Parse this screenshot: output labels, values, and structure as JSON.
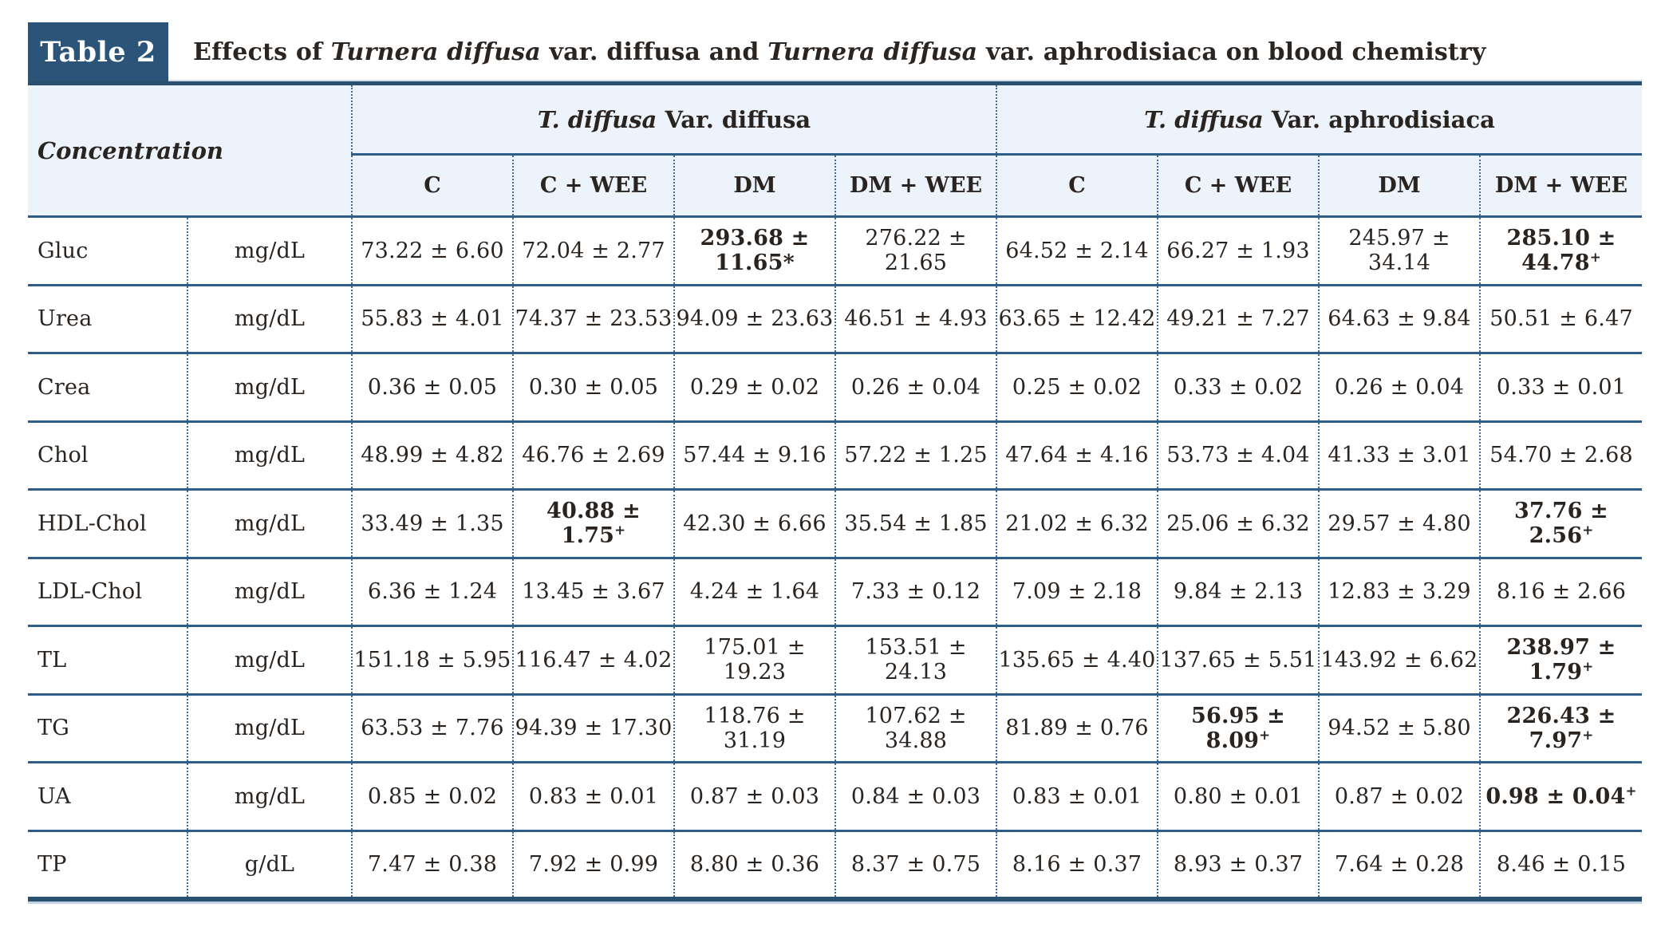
{
  "appearance": {
    "accent_navy": "#2b5478",
    "header_background": "#edf3fa",
    "rule_blue": "#2e5d8a",
    "dotted_blue": "#3c6c9e",
    "text_color": "#2a2420",
    "label_text_color": "#ffffff"
  },
  "table": {
    "label": "Table 2",
    "caption_parts": [
      {
        "text": "Effects of ",
        "italic": false
      },
      {
        "text": "Turnera diffusa",
        "italic": true
      },
      {
        "text": " var. diffusa and ",
        "italic": false
      },
      {
        "text": "Turnera diffusa",
        "italic": true
      },
      {
        "text": " var. aphrodisiaca on blood chemistry",
        "italic": false
      }
    ],
    "concentration_header": "Concentration",
    "groups": [
      {
        "species_italic": "T. diffusa",
        "rest": " Var. diffusa"
      },
      {
        "species_italic": "T. diffusa",
        "rest": " Var. aphrodisiaca"
      }
    ],
    "col_headers": [
      "C",
      "C + WEE",
      "DM",
      "DM + WEE",
      "C",
      "C + WEE",
      "DM",
      "DM + WEE"
    ],
    "rows": [
      {
        "param": "Gluc",
        "unit": "mg/dL",
        "values": [
          {
            "text": "73.22 ± 6.60"
          },
          {
            "text": "72.04 ± 2.77"
          },
          {
            "text": "293.68 ± 11.65*",
            "bold": true
          },
          {
            "text": "276.22 ± 21.65"
          },
          {
            "text": "64.52 ± 2.14"
          },
          {
            "text": "66.27 ± 1.93"
          },
          {
            "text": "245.97 ± 34.14"
          },
          {
            "text": "285.10 ± 44.78",
            "bold": true,
            "sup": "+"
          }
        ]
      },
      {
        "param": "Urea",
        "unit": "mg/dL",
        "values": [
          {
            "text": "55.83 ± 4.01"
          },
          {
            "text": "74.37 ± 23.53"
          },
          {
            "text": "94.09 ± 23.63"
          },
          {
            "text": "46.51 ± 4.93"
          },
          {
            "text": "63.65 ± 12.42"
          },
          {
            "text": "49.21 ± 7.27"
          },
          {
            "text": "64.63 ± 9.84"
          },
          {
            "text": "50.51 ± 6.47"
          }
        ]
      },
      {
        "param": "Crea",
        "unit": "mg/dL",
        "values": [
          {
            "text": "0.36 ± 0.05"
          },
          {
            "text": "0.30 ± 0.05"
          },
          {
            "text": "0.29 ± 0.02"
          },
          {
            "text": "0.26 ± 0.04"
          },
          {
            "text": "0.25 ± 0.02"
          },
          {
            "text": "0.33 ± 0.02"
          },
          {
            "text": "0.26 ± 0.04"
          },
          {
            "text": "0.33 ± 0.01"
          }
        ]
      },
      {
        "param": "Chol",
        "unit": "mg/dL",
        "values": [
          {
            "text": "48.99 ± 4.82"
          },
          {
            "text": "46.76 ± 2.69"
          },
          {
            "text": "57.44 ± 9.16"
          },
          {
            "text": "57.22 ± 1.25"
          },
          {
            "text": "47.64 ± 4.16"
          },
          {
            "text": "53.73 ± 4.04"
          },
          {
            "text": "41.33 ± 3.01"
          },
          {
            "text": "54.70 ± 2.68"
          }
        ]
      },
      {
        "param": "HDL-Chol",
        "unit": "mg/dL",
        "values": [
          {
            "text": "33.49 ± 1.35"
          },
          {
            "text": "40.88 ± 1.75",
            "bold": true,
            "sup": "+"
          },
          {
            "text": "42.30 ± 6.66"
          },
          {
            "text": "35.54 ± 1.85"
          },
          {
            "text": "21.02 ± 6.32"
          },
          {
            "text": "25.06 ± 6.32"
          },
          {
            "text": "29.57 ± 4.80"
          },
          {
            "text": "37.76 ± 2.56",
            "bold": true,
            "sup": "+"
          }
        ]
      },
      {
        "param": "LDL-Chol",
        "unit": "mg/dL",
        "values": [
          {
            "text": "6.36 ± 1.24"
          },
          {
            "text": "13.45 ± 3.67"
          },
          {
            "text": "4.24 ± 1.64"
          },
          {
            "text": "7.33 ± 0.12"
          },
          {
            "text": "7.09 ± 2.18"
          },
          {
            "text": "9.84 ± 2.13"
          },
          {
            "text": "12.83 ± 3.29"
          },
          {
            "text": "8.16 ± 2.66"
          }
        ]
      },
      {
        "param": "TL",
        "unit": "mg/dL",
        "values": [
          {
            "text": "151.18 ± 5.95"
          },
          {
            "text": "116.47 ± 4.02"
          },
          {
            "text": "175.01 ± 19.23"
          },
          {
            "text": "153.51 ± 24.13"
          },
          {
            "text": "135.65 ± 4.40"
          },
          {
            "text": "137.65 ± 5.51"
          },
          {
            "text": "143.92 ± 6.62"
          },
          {
            "text": "238.97 ± 1.79",
            "bold": true,
            "sup": "+"
          }
        ]
      },
      {
        "param": "TG",
        "unit": "mg/dL",
        "values": [
          {
            "text": "63.53 ± 7.76"
          },
          {
            "text": "94.39 ± 17.30"
          },
          {
            "text": "118.76 ± 31.19"
          },
          {
            "text": "107.62 ± 34.88"
          },
          {
            "text": "81.89 ± 0.76"
          },
          {
            "text": "56.95 ± 8.09",
            "bold": true,
            "sup": "+"
          },
          {
            "text": "94.52 ± 5.80"
          },
          {
            "text": "226.43 ± 7.97",
            "bold": true,
            "sup": "+"
          }
        ]
      },
      {
        "param": "UA",
        "unit": "mg/dL",
        "values": [
          {
            "text": "0.85 ± 0.02"
          },
          {
            "text": "0.83 ± 0.01"
          },
          {
            "text": "0.87 ± 0.03"
          },
          {
            "text": "0.84 ± 0.03"
          },
          {
            "text": "0.83 ± 0.01"
          },
          {
            "text": "0.80 ± 0.01"
          },
          {
            "text": "0.87 ± 0.02"
          },
          {
            "text": "0.98 ± 0.04",
            "bold": true,
            "sup": "+"
          }
        ]
      },
      {
        "param": "TP",
        "unit": "g/dL",
        "values": [
          {
            "text": "7.47 ± 0.38"
          },
          {
            "text": "7.92 ± 0.99"
          },
          {
            "text": "8.80 ± 0.36"
          },
          {
            "text": "8.37 ± 0.75"
          },
          {
            "text": "8.16 ± 0.37"
          },
          {
            "text": "8.93 ± 0.37"
          },
          {
            "text": "7.64 ± 0.28"
          },
          {
            "text": "8.46 ± 0.15"
          }
        ]
      }
    ]
  }
}
